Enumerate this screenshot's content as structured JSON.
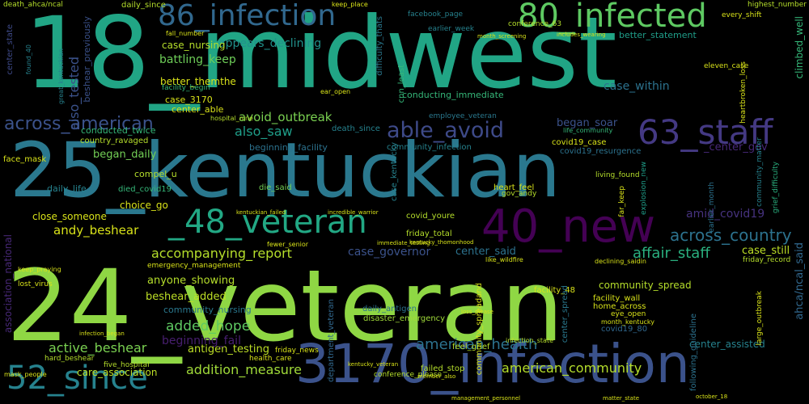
{
  "words": [
    "24_veteran",
    "18_midwest",
    "25_kentuckian",
    "3170_infection",
    "40_new",
    "80_infected",
    "86_infection",
    "63_staff",
    "52_since",
    "_48_veteran",
    "able_avoid",
    "across_american",
    "across_country",
    "affair_staff",
    "american_health",
    "american_community",
    "addition_measure",
    "added_hope",
    "active_beshear",
    "accompanying_report",
    "andy_beshear",
    "anyone_showing",
    "antigen_testing",
    "appears_declining",
    "also_saw",
    "also_tested",
    "avoid_outbreak",
    "amid_covid19",
    "battling_keep",
    "beginning_fail",
    "beshear_added",
    "community_spread",
    "case_within",
    "case_governor",
    "case_still",
    "center_said",
    "center_assisted",
    "care_association",
    "close_someone",
    "better_themthe",
    "case_nursing",
    "began_daily",
    "began_soar",
    "community_nursing",
    "conducted_twice",
    "country_ravaged",
    "community_infection",
    "beginning_facility",
    "_center_gov",
    "ahca/ncal_said",
    "association_national",
    "beshear_previously",
    "center_state",
    "climbed_well",
    "case_3170",
    "center_able",
    "choice_go",
    "compel_u",
    "daily_life",
    "death_since",
    "die_said",
    "died_covid19",
    "facility_begin",
    "employee_veteran",
    "conducting_immediate",
    "case_kentucky",
    "cnn_least",
    "difficulty_thats",
    "better_statement",
    "covid_youre",
    "friday_total",
    "heart_feel",
    "covid19_case",
    "covid19_resurgence",
    "department_veteran",
    "community_spreadand",
    "feel_grief",
    "failed_stop",
    "facility_48",
    "facility_wall",
    "home_across",
    "center_spread",
    "covid19_80",
    "following_guideline",
    "friday_news",
    "health_care",
    "daily_antigen",
    "disaster_emergency",
    "emergency_management",
    "facility_following",
    "lost_virus",
    "keep_praying",
    "face_mask",
    "far_keep",
    "gov_andy",
    "living_found",
    "life_community",
    "explosion_new",
    "earlier_month",
    "grief_difficulty",
    "community_matter",
    "every_shift",
    "highest_number",
    "great_kentuckian",
    "found_40",
    "daily_since",
    "death_ahca/ncal",
    "keep_place",
    "facebook_page",
    "earlier_week",
    "month_screening",
    "includes_wearing",
    "fall_number",
    "ear_open",
    "hospital_nine",
    "death_since",
    "kentuckian_failed",
    "incredible_warrior",
    "fewer_senior",
    "immediate_testing",
    "kentucky_thomonhood",
    "friday_record",
    "infection_state",
    "five_hospital",
    "hard_beshear",
    "conference_please",
    "kentucky_veteran",
    "loss_please",
    "declining_saidin",
    "like_wildfire",
    "eleven_case",
    "heartbroken_loss",
    "large_outbreak",
    "eye_open",
    "month_kentucky",
    "conference_63",
    "mask_people",
    "infection_began",
    "member_also",
    "management_personnel",
    "matter_state",
    "october_18"
  ]
}
